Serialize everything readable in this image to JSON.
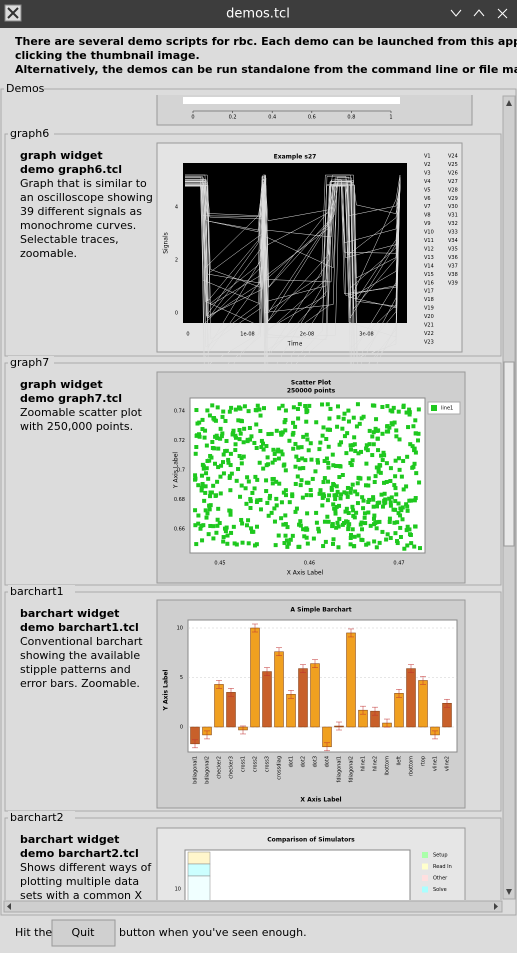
{
  "window": {
    "title": "demos.tcl"
  },
  "intro": [
    "There are several demo scripts for rbc.  Each demo can be launched from this application by",
    "clicking the thumbnail image.",
    "Alternatively, the demos can be run standalone from the command line or file manager."
  ],
  "frame_label": "Demos",
  "partial_thumbnail": {
    "xticks": [
      0,
      0.2,
      0.4,
      0.6,
      0.8,
      1
    ]
  },
  "demos": [
    {
      "name": "graph6",
      "heading": [
        "graph widget",
        "demo graph6.tcl"
      ],
      "description": [
        "Graph that is similar to",
        "an oscilloscope showing",
        "39 different signals as",
        "monochrome curves.",
        "Selectable traces,",
        "zoomable."
      ],
      "thumbnail": {
        "title": "Example s27",
        "xlabel": "Time",
        "ylabel": "Signals",
        "yticks": [
          0,
          2,
          4
        ],
        "xticks": [
          "0",
          "1e-08",
          "2e-08",
          "3e-08"
        ],
        "legend": [
          "V1",
          "V2",
          "V3",
          "V4",
          "V5",
          "V6",
          "V7",
          "V8",
          "V9",
          "V10",
          "V11",
          "V12",
          "V13",
          "V14",
          "V15",
          "V16",
          "V17",
          "V18",
          "V19",
          "V20",
          "V21",
          "V22",
          "V23",
          "V24",
          "V25",
          "V26",
          "V27",
          "V28",
          "V29",
          "V30",
          "V31",
          "V32",
          "V33",
          "V34",
          "V35",
          "V36",
          "V37",
          "V38",
          "V39"
        ]
      }
    },
    {
      "name": "graph7",
      "heading": [
        "graph widget",
        "demo graph7.tcl"
      ],
      "description": [
        "Zoomable scatter plot",
        "with 250,000 points."
      ],
      "thumbnail": {
        "title": "Scatter Plot",
        "subtitle": "250000 points",
        "xlabel": "X Axis Label",
        "ylabel": "Y Axis Label",
        "legend": [
          "line1"
        ],
        "yticks": [
          0.74,
          0.72,
          0.7,
          0.68,
          0.66
        ],
        "xticks": [
          0.45,
          0.46,
          0.47
        ]
      }
    },
    {
      "name": "barchart1",
      "heading": [
        "barchart widget",
        "demo barchart1.tcl"
      ],
      "description": [
        "Conventional barchart",
        "showing the available",
        "stipple patterns and",
        "error bars.  Zoomable."
      ],
      "thumbnail": {
        "type": "bar",
        "title": "A Simple Barchart",
        "xlabel": "X Axis Label",
        "ylabel": "Y Axis Label",
        "categories": [
          "bdiagonal1",
          "bdiagonal2",
          "checker2",
          "checker3",
          "cross1",
          "cross2",
          "cross3",
          "crossdiag",
          "dot1",
          "dot2",
          "dot3",
          "dot4",
          "fdiagonal1",
          "fdiagonal2",
          "hline1",
          "hline2",
          "lbottom",
          "lleft",
          "rbottom",
          "rtop",
          "vline1",
          "vline2"
        ],
        "values": [
          -1.7,
          -0.8,
          4.3,
          3.5,
          -0.3,
          10,
          5.6,
          7.6,
          3.3,
          5.9,
          6.4,
          -2,
          0.1,
          9.5,
          1.7,
          1.6,
          0.4,
          3.4,
          5.9,
          4.7,
          -0.8,
          2.4
        ],
        "ylim": [
          -3,
          11
        ],
        "yticks": [
          0,
          5,
          10
        ]
      }
    },
    {
      "name": "barchart2",
      "heading": [
        "barchart widget",
        "demo barchart2.tcl"
      ],
      "description": [
        "Shows different ways of",
        "plotting multiple data",
        "sets with a common X"
      ],
      "thumbnail": {
        "title": "Comparison of Simulators",
        "legend": [
          "Setup",
          "Read In",
          "Other",
          "Solve"
        ],
        "yticks": [
          10
        ]
      }
    }
  ],
  "footer": {
    "before": "Hit the",
    "button": "Quit",
    "after": "button when you've seen enough."
  }
}
